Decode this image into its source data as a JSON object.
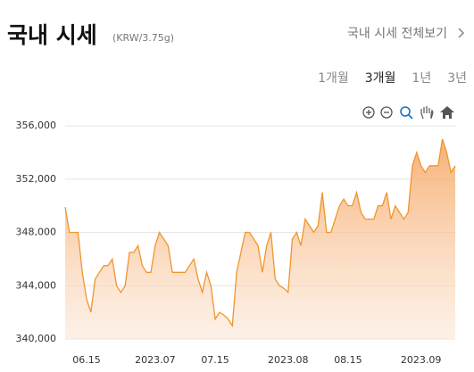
{
  "header": {
    "title": "국내 시세",
    "unit": "(KRW/3.75g)",
    "link": "국내 시세 전체보기",
    "tabs": [
      "1개월",
      "3개월",
      "1년",
      "3년"
    ]
  },
  "chart_data": {
    "type": "area",
    "categories": [
      null,
      null,
      null,
      null,
      null,
      "06.15",
      null,
      null,
      null,
      null,
      null,
      null,
      null,
      null,
      null,
      null,
      null,
      null,
      null,
      null,
      null,
      "2023.07",
      null,
      null,
      null,
      null,
      null,
      null,
      null,
      null,
      null,
      null,
      null,
      null,
      null,
      "07.15",
      null,
      null,
      null,
      null,
      null,
      null,
      null,
      null,
      null,
      null,
      null,
      null,
      null,
      null,
      null,
      null,
      "2023.08",
      null,
      null,
      null,
      null,
      null,
      null,
      null,
      null,
      null,
      null,
      null,
      null,
      null,
      "08.15",
      null,
      null,
      null,
      null,
      null,
      null,
      null,
      null,
      null,
      null,
      null,
      null,
      null,
      null,
      null,
      null,
      "2023.09",
      null,
      null,
      null,
      null,
      null,
      null,
      null,
      null
    ],
    "values": [
      349900,
      348000,
      348000,
      348000,
      345000,
      343000,
      342000,
      344500,
      345000,
      345500,
      345500,
      346000,
      344000,
      343500,
      344000,
      346500,
      346500,
      347000,
      345500,
      345000,
      345000,
      347000,
      348000,
      347500,
      347000,
      345000,
      345000,
      345000,
      345000,
      345500,
      346000,
      344500,
      343500,
      345000,
      344000,
      341500,
      342000,
      341800,
      341500,
      341000,
      345000,
      346500,
      348000,
      348000,
      347500,
      347000,
      345000,
      347000,
      348000,
      344500,
      344000,
      343800,
      343500,
      347500,
      348000,
      347000,
      349000,
      348500,
      348000,
      348500,
      351000,
      348000,
      348000,
      349000,
      350000,
      350500,
      350000,
      350000,
      351000,
      349500,
      349000,
      349000,
      349000,
      350000,
      350000,
      351000,
      349000,
      350000,
      349500,
      349000,
      349500,
      353000,
      354000,
      353000,
      352500,
      353000,
      353000,
      353000,
      355000,
      354000,
      352500,
      353000
    ],
    "color": "#f0952e",
    "ylim": [
      340000,
      356000
    ],
    "yticks": [
      {
        "value": 340000,
        "label": "340,000"
      },
      {
        "value": 344000,
        "label": "344,000"
      },
      {
        "value": 348000,
        "label": "348,000"
      },
      {
        "value": 352000,
        "label": "352,000"
      },
      {
        "value": 356000,
        "label": "356,000"
      }
    ],
    "grid": true
  }
}
